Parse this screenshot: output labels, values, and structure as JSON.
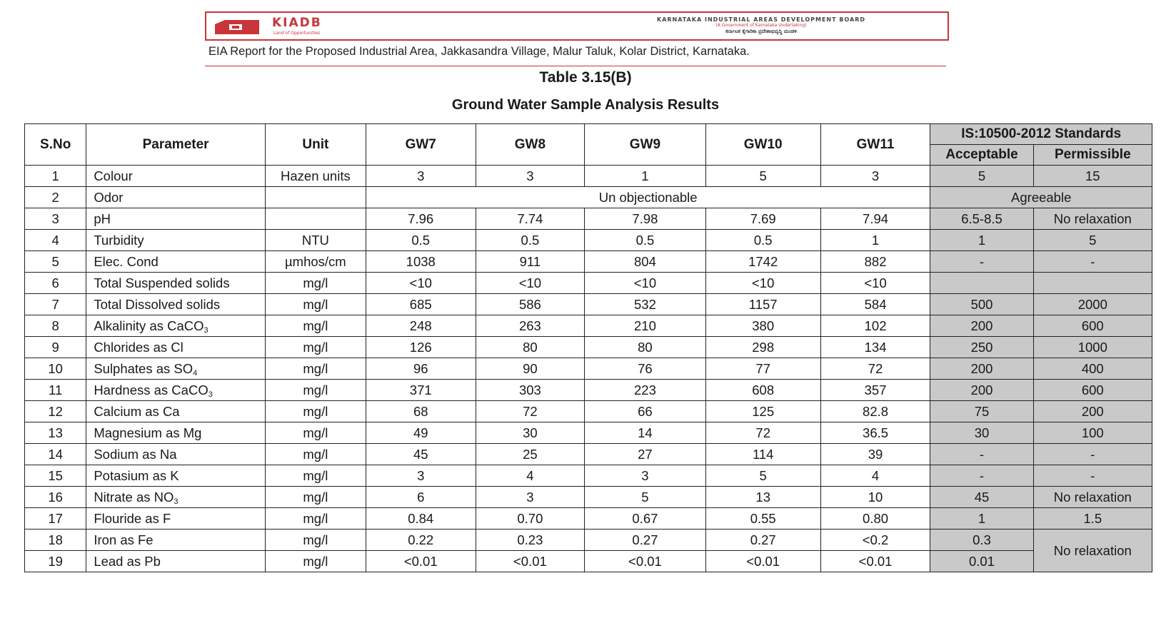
{
  "letterhead": {
    "brand": "KIADB",
    "tagline": "Land of Opportunities",
    "org_name": "KARNATAKA INDUSTRIAL AREAS DEVELOPMENT BOARD",
    "org_sub": "(A Government of Karnataka Undertaking)",
    "org_kannada": "ಕರ್ನಾಟಕ ಕೈಗಾರಿಕಾ ಪ್ರದೇಶಾಭಿವೃದ್ಧಿ ಮಂಡಳಿ",
    "accent_color": "#c8353a"
  },
  "report_line": "EIA Report for the Proposed Industrial Area, Jakkasandra Village, Malur Taluk, Kolar District, Karnataka.",
  "table_no": "Table 3.15(B)",
  "table_title": "Ground Water Sample Analysis Results",
  "headers": {
    "sno": "S.No",
    "parameter": "Parameter",
    "unit": "Unit",
    "samples": [
      "GW7",
      "GW8",
      "GW9",
      "GW10",
      "GW11"
    ],
    "standards": "IS:10500-2012 Standards",
    "acceptable": "Acceptable",
    "permissible": "Permissible"
  },
  "rows": [
    {
      "sno": "1",
      "parameter": "Colour",
      "unit": "Hazen units",
      "values": [
        "3",
        "3",
        "1",
        "5",
        "3"
      ],
      "acceptable": "5",
      "permissible": "15"
    },
    {
      "sno": "2",
      "parameter": "Odor",
      "unit": "",
      "merged_value": "Un objectionable",
      "merged_standard": "Agreeable"
    },
    {
      "sno": "3",
      "parameter": "pH",
      "unit": "",
      "values": [
        "7.96",
        "7.74",
        "7.98",
        "7.69",
        "7.94"
      ],
      "acceptable": "6.5-8.5",
      "permissible": "No relaxation"
    },
    {
      "sno": "4",
      "parameter": "Turbidity",
      "unit": "NTU",
      "values": [
        "0.5",
        "0.5",
        "0.5",
        "0.5",
        "1"
      ],
      "acceptable": "1",
      "permissible": "5"
    },
    {
      "sno": "5",
      "parameter": "Elec. Cond",
      "unit": "µmhos/cm",
      "values": [
        "1038",
        "911",
        "804",
        "1742",
        "882"
      ],
      "acceptable": "-",
      "permissible": "-"
    },
    {
      "sno": "6",
      "parameter": "Total Suspended solids",
      "unit": "mg/l",
      "values": [
        "<10",
        "<10",
        "<10",
        "<10",
        "<10"
      ],
      "acceptable": "",
      "permissible": ""
    },
    {
      "sno": "7",
      "parameter": "Total Dissolved solids",
      "unit": "mg/l",
      "values": [
        "685",
        "586",
        "532",
        "1157",
        "584"
      ],
      "acceptable": "500",
      "permissible": "2000"
    },
    {
      "sno": "8",
      "parameter": "Alkalinity as CaCO",
      "sub": "3",
      "unit": "mg/l",
      "values": [
        "248",
        "263",
        "210",
        "380",
        "102"
      ],
      "acceptable": "200",
      "permissible": "600"
    },
    {
      "sno": "9",
      "parameter": "Chlorides as Cl",
      "unit": "mg/l",
      "values": [
        "126",
        "80",
        "80",
        "298",
        "134"
      ],
      "acceptable": "250",
      "permissible": "1000"
    },
    {
      "sno": "10",
      "parameter": "Sulphates as SO",
      "sub": "4",
      "unit": "mg/l",
      "values": [
        "96",
        "90",
        "76",
        "77",
        "72"
      ],
      "acceptable": "200",
      "permissible": "400"
    },
    {
      "sno": "11",
      "parameter": "Hardness as CaCO",
      "sub": "3",
      "unit": "mg/l",
      "values": [
        "371",
        "303",
        "223",
        "608",
        "357"
      ],
      "acceptable": "200",
      "permissible": "600"
    },
    {
      "sno": "12",
      "parameter": "Calcium as Ca",
      "unit": "mg/l",
      "values": [
        "68",
        "72",
        "66",
        "125",
        "82.8"
      ],
      "acceptable": "75",
      "permissible": "200"
    },
    {
      "sno": "13",
      "parameter": "Magnesium as Mg",
      "unit": "mg/l",
      "values": [
        "49",
        "30",
        "14",
        "72",
        "36.5"
      ],
      "acceptable": "30",
      "permissible": "100"
    },
    {
      "sno": "14",
      "parameter": "Sodium as Na",
      "unit": "mg/l",
      "values": [
        "45",
        "25",
        "27",
        "114",
        "39"
      ],
      "acceptable": "-",
      "permissible": "-"
    },
    {
      "sno": "15",
      "parameter": "Potasium as K",
      "unit": "mg/l",
      "values": [
        "3",
        "4",
        "3",
        "5",
        "4"
      ],
      "acceptable": "-",
      "permissible": "-"
    },
    {
      "sno": "16",
      "parameter": "Nitrate as NO",
      "sub": "3",
      "unit": "mg/l",
      "values": [
        "6",
        "3",
        "5",
        "13",
        "10"
      ],
      "acceptable": "45",
      "permissible": "No relaxation"
    },
    {
      "sno": "17",
      "parameter": "Flouride as F",
      "unit": "mg/l",
      "values": [
        "0.84",
        "0.70",
        "0.67",
        "0.55",
        "0.80"
      ],
      "acceptable": "1",
      "permissible": "1.5"
    },
    {
      "sno": "18",
      "parameter": "Iron as Fe",
      "unit": "mg/l",
      "values": [
        "0.22",
        "0.23",
        "0.27",
        "0.27",
        "<0.2"
      ],
      "acceptable": "0.3",
      "permissible": "No relaxation",
      "permissible_rowspan": 2
    },
    {
      "sno": "19",
      "parameter": "Lead as Pb",
      "unit": "mg/l",
      "values": [
        "<0.01",
        "<0.01",
        "<0.01",
        "<0.01",
        "<0.01"
      ],
      "acceptable": "0.01"
    }
  ]
}
